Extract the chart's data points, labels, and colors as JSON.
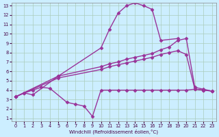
{
  "line1_big": {
    "x": [
      0,
      1,
      2,
      5,
      10,
      11,
      12,
      13,
      14,
      15,
      16,
      17,
      19
    ],
    "y": [
      3.3,
      3.7,
      3.5,
      5.5,
      8.5,
      10.5,
      12.2,
      13.0,
      13.3,
      13.0,
      12.6,
      9.3,
      9.5
    ]
  },
  "line2_upper": {
    "x": [
      0,
      5,
      10,
      11,
      12,
      13,
      14,
      15,
      16,
      17,
      18,
      19,
      20,
      21,
      22,
      23
    ],
    "y": [
      3.3,
      5.5,
      6.5,
      6.8,
      7.0,
      7.3,
      7.5,
      7.7,
      7.9,
      8.3,
      8.6,
      9.3,
      9.5,
      4.3,
      4.1,
      3.9
    ]
  },
  "line3_mid": {
    "x": [
      0,
      5,
      10,
      11,
      12,
      13,
      14,
      15,
      16,
      17,
      18,
      19,
      20,
      21,
      22,
      23
    ],
    "y": [
      3.3,
      5.3,
      6.2,
      6.5,
      6.7,
      6.9,
      7.1,
      7.3,
      7.5,
      7.8,
      8.0,
      8.2,
      7.8,
      4.1,
      4.0,
      3.9
    ]
  },
  "line4_low": {
    "x": [
      0,
      1,
      2,
      3,
      4,
      6,
      7,
      8,
      9,
      10,
      11,
      12,
      13,
      14,
      15,
      16,
      17,
      18,
      19,
      20,
      21,
      22,
      23
    ],
    "y": [
      3.3,
      3.7,
      4.0,
      4.3,
      4.2,
      2.7,
      2.5,
      2.3,
      1.2,
      4.0,
      4.0,
      4.0,
      4.0,
      4.0,
      4.0,
      4.0,
      4.0,
      4.0,
      4.0,
      4.0,
      4.1,
      4.0,
      3.9
    ]
  },
  "line_color": "#993399",
  "bg_color": "#cceeff",
  "grid_color": "#aaccbb",
  "xlabel": "Windchill (Refroidissement éolien,°C)",
  "xlim": [
    -0.5,
    23.5
  ],
  "ylim": [
    0.7,
    13.3
  ],
  "xticks": [
    0,
    1,
    2,
    3,
    4,
    5,
    6,
    7,
    8,
    9,
    10,
    11,
    12,
    13,
    14,
    15,
    16,
    17,
    18,
    19,
    20,
    21,
    22,
    23
  ],
  "yticks": [
    1,
    2,
    3,
    4,
    5,
    6,
    7,
    8,
    9,
    10,
    11,
    12,
    13
  ],
  "marker": "D",
  "markersize": 2.5,
  "linewidth": 1.0
}
